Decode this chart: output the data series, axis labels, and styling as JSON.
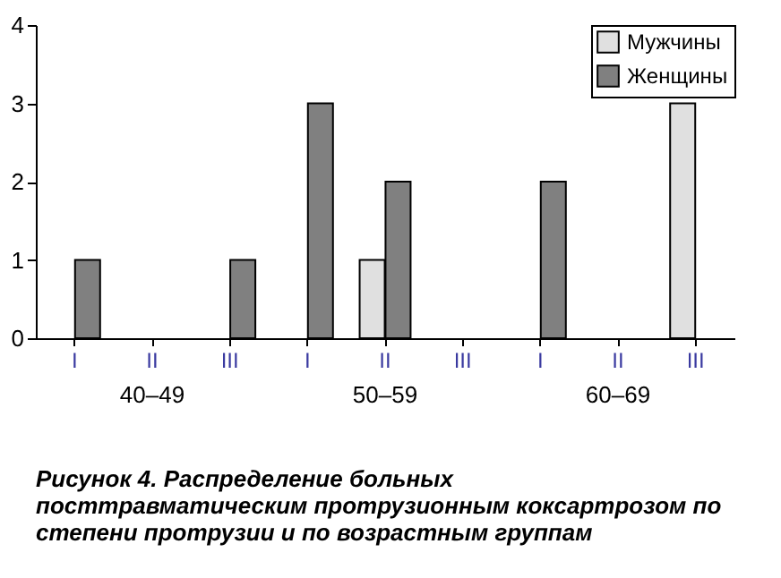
{
  "chart_data": {
    "type": "bar",
    "title": "Рисунок 4. Распределение больных посттравматическим протрузионным коксартрозом по степени протрузии и по возрастным группам",
    "categories": [
      "I",
      "II",
      "III",
      "I",
      "II",
      "III",
      "I",
      "II",
      "III"
    ],
    "series": [
      {
        "name": "Мужчины",
        "color": "#e0e0e0",
        "values": [
          null,
          null,
          null,
          null,
          1,
          null,
          null,
          null,
          3
        ]
      },
      {
        "name": "Женщины",
        "color": "#808080",
        "values": [
          1,
          null,
          1,
          3,
          2,
          null,
          2,
          null,
          null
        ]
      }
    ],
    "annotations": [
      "40–49",
      "50–59",
      "60–69"
    ],
    "ylim": [
      0,
      4
    ],
    "yticks": [
      0,
      1,
      2,
      3,
      4
    ],
    "grid": false,
    "legend": "top right"
  }
}
